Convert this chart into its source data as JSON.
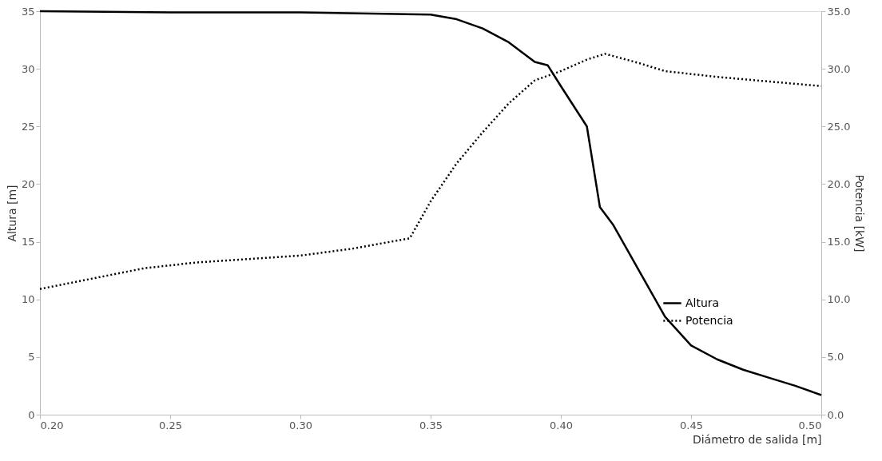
{
  "chart_data": {
    "type": "line",
    "xlabel": "Diámetro de salida [m]",
    "ylabel": "Altura [m]",
    "y2label": "Potencia [kW]",
    "xlim": [
      0.2,
      0.5
    ],
    "xticks": [
      {
        "value": 0.2,
        "label": "0.20"
      },
      {
        "value": 0.25,
        "label": "0.25"
      },
      {
        "value": 0.3,
        "label": "0.30"
      },
      {
        "value": 0.35,
        "label": "0.35"
      },
      {
        "value": 0.4,
        "label": "0.40"
      },
      {
        "value": 0.45,
        "label": "0.45"
      },
      {
        "value": 0.5,
        "label": "0.50"
      }
    ],
    "ylim": [
      0,
      35
    ],
    "yticks": [
      0,
      5,
      10,
      15,
      20,
      25,
      30,
      35
    ],
    "y2lim": [
      0,
      35
    ],
    "y2ticks": [
      {
        "value": 0,
        "label": "0.0"
      },
      {
        "value": 5,
        "label": "5.0"
      },
      {
        "value": 10,
        "label": "10.0"
      },
      {
        "value": 15,
        "label": "15.0"
      },
      {
        "value": 20,
        "label": "20.0"
      },
      {
        "value": 25,
        "label": "25.0"
      },
      {
        "value": 30,
        "label": "30.0"
      },
      {
        "value": 35,
        "label": "35.0"
      }
    ],
    "legend": "bottom right",
    "grid": false,
    "series": [
      {
        "name": "Altura",
        "color": "#000000",
        "line_style": "solid",
        "x": [
          0.2,
          0.25,
          0.3,
          0.35,
          0.36,
          0.37,
          0.38,
          0.39,
          0.395,
          0.4,
          0.41,
          0.415,
          0.42,
          0.43,
          0.44,
          0.45,
          0.46,
          0.47,
          0.48,
          0.49,
          0.5
        ],
        "values": [
          35,
          34.9,
          34.9,
          34.7,
          34.3,
          33.5,
          32.3,
          30.6,
          30.3,
          28.5,
          25,
          18,
          16.5,
          12.5,
          8.5,
          6,
          4.8,
          3.9,
          3.2,
          2.5,
          1.7
        ]
      },
      {
        "name": "Potencia",
        "color": "#000000",
        "line_style": "dotted",
        "axis": "y2",
        "x": [
          0.2,
          0.22,
          0.24,
          0.26,
          0.28,
          0.3,
          0.32,
          0.342,
          0.35,
          0.36,
          0.37,
          0.38,
          0.39,
          0.4,
          0.41,
          0.417,
          0.43,
          0.44,
          0.46,
          0.48,
          0.5
        ],
        "values": [
          10.9,
          11.8,
          12.7,
          13.2,
          13.5,
          13.8,
          14.4,
          15.3,
          18.5,
          21.8,
          24.5,
          27,
          29,
          29.8,
          30.8,
          31.3,
          30.5,
          29.8,
          29.3,
          28.9,
          28.5
        ]
      }
    ]
  }
}
